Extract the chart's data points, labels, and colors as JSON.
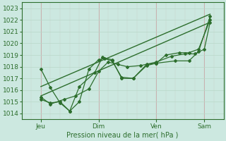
{
  "xlabel": "Pression niveau de la mer( hPa )",
  "bg_color": "#cce8e0",
  "grid_color_major": "#c8c8d8",
  "grid_color_minor": "#d8e8e0",
  "line_color": "#2d6e2d",
  "ylim": [
    1013.5,
    1023.5
  ],
  "yticks": [
    1014,
    1015,
    1016,
    1017,
    1018,
    1019,
    1020,
    1021,
    1022,
    1023
  ],
  "xtick_labels": [
    "Jeu",
    "Dim",
    "Ven",
    "Sam"
  ],
  "xtick_positions": [
    1,
    4,
    7,
    9.5
  ],
  "xlim": [
    0.0,
    10.5
  ],
  "line1_x": [
    1.0,
    1.5,
    2.0,
    2.5,
    3.0,
    3.5,
    4.0,
    4.3,
    4.7,
    5.2,
    5.8,
    6.5,
    7.0,
    8.0,
    8.7,
    9.2,
    9.8
  ],
  "line1_y": [
    1017.8,
    1016.2,
    1014.9,
    1014.2,
    1015.0,
    1017.8,
    1018.6,
    1018.7,
    1018.5,
    1017.1,
    1017.0,
    1018.1,
    1018.3,
    1018.5,
    1018.5,
    1019.3,
    1022.3
  ],
  "line2_x": [
    1.0,
    1.5,
    2.0,
    2.5,
    3.0,
    3.8,
    4.2,
    4.7,
    5.2,
    5.8,
    6.5,
    7.0,
    7.5,
    8.2,
    8.7,
    9.2,
    9.8
  ],
  "line2_y": [
    1015.2,
    1014.9,
    1015.0,
    1014.2,
    1016.3,
    1017.5,
    1018.8,
    1018.6,
    1017.0,
    1017.0,
    1018.2,
    1018.3,
    1019.0,
    1019.2,
    1019.2,
    1019.5,
    1022.0
  ],
  "line3_x": [
    1.0,
    1.5,
    2.2,
    2.8,
    3.5,
    4.0,
    4.5,
    5.0,
    5.5,
    6.2,
    7.0,
    7.8,
    8.5,
    9.0,
    9.5,
    9.8
  ],
  "line3_y": [
    1015.4,
    1014.8,
    1015.2,
    1015.5,
    1016.1,
    1017.6,
    1018.4,
    1018.2,
    1018.0,
    1018.1,
    1018.4,
    1018.9,
    1019.1,
    1019.1,
    1019.5,
    1021.8
  ],
  "trend1_x": [
    1.0,
    9.8
  ],
  "trend1_y": [
    1015.5,
    1021.8
  ],
  "trend2_x": [
    1.0,
    9.8
  ],
  "trend2_y": [
    1016.3,
    1022.5
  ],
  "vline_positions": [
    1.0,
    4.0,
    7.0,
    9.5
  ],
  "xlabel_fontsize": 7,
  "tick_fontsize": 6.5,
  "marker_size": 2.0
}
